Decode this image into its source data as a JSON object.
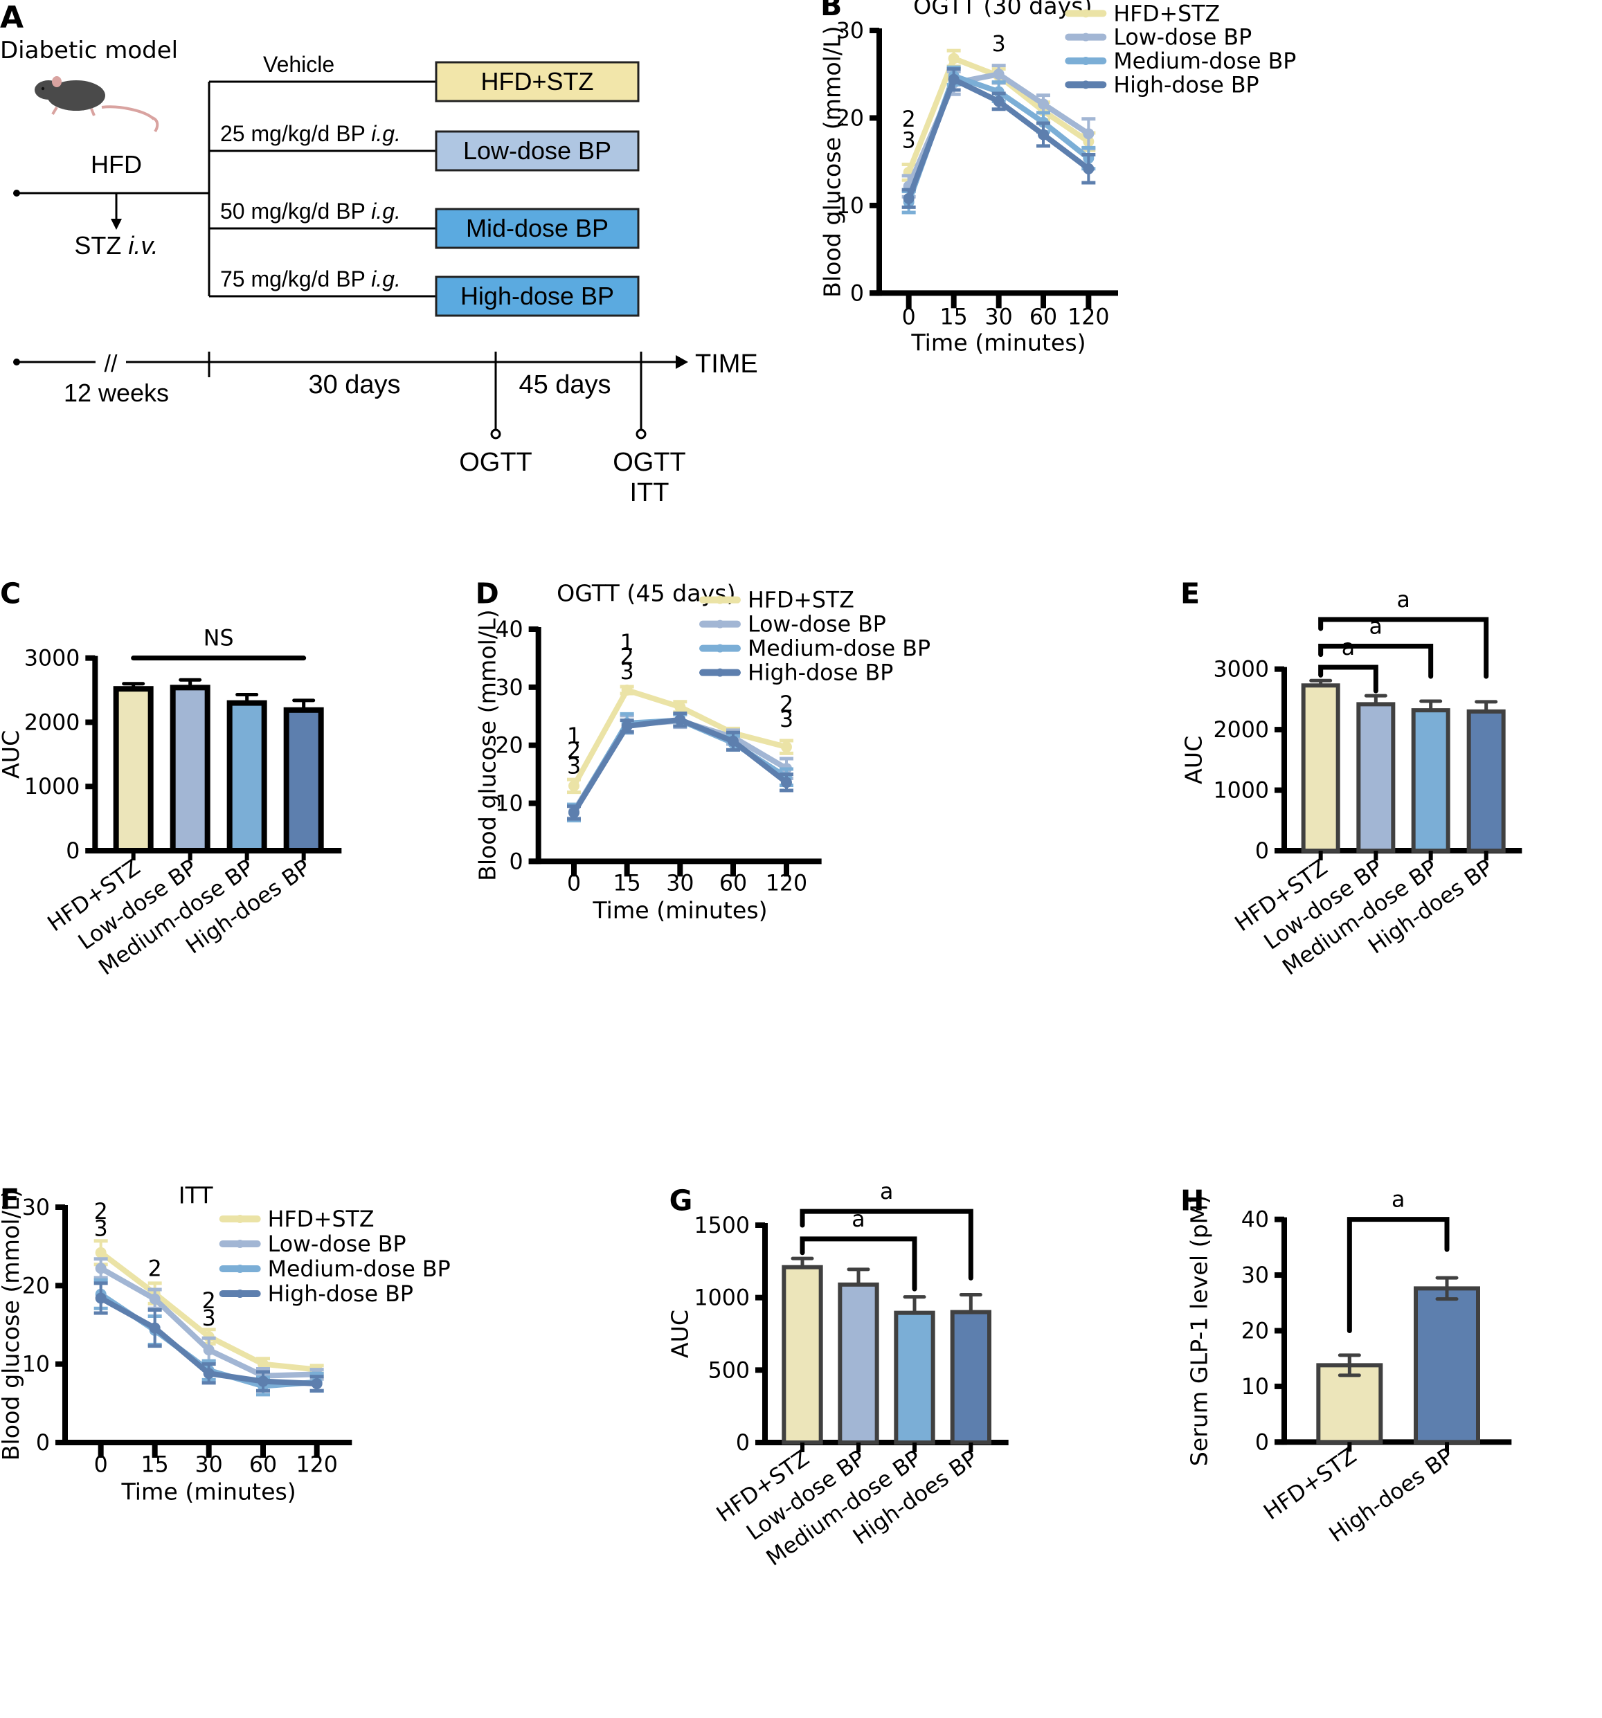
{
  "colors": {
    "hfd_stz": "#ECE5BA",
    "hfd_stz_line": "#EBE3A6",
    "low_dose": "#A2B6D4",
    "medium_dose": "#7BAED6",
    "high_dose": "#5D7FAE",
    "box_hfd": "#F2E6AA",
    "box_low": "#AFC6E2",
    "box_mid": "#5BAAE0",
    "box_high": "#5BAAE0",
    "axis": "#000000",
    "bar_outline_c": "#000000",
    "bar_outline": "#404040"
  },
  "panel_a": {
    "letter": "A",
    "title": "Diabetic model",
    "mouse_icon": "mouse-icon",
    "hfd_label": "HFD",
    "stz_label_main": "STZ ",
    "stz_label_italic": "i.v.",
    "branches": [
      {
        "dose_label": "Vehicle",
        "dose_italic": "",
        "group": "HFD+STZ",
        "color_key": "box_hfd"
      },
      {
        "dose_label": "25 mg/kg/d BP ",
        "dose_italic": "i.g.",
        "group": "Low-dose BP",
        "color_key": "box_low"
      },
      {
        "dose_label": "50 mg/kg/d BP ",
        "dose_italic": "i.g.",
        "group": "Mid-dose BP",
        "color_key": "box_mid"
      },
      {
        "dose_label": "75 mg/kg/d BP ",
        "dose_italic": "i.g.",
        "group": "High-dose BP",
        "color_key": "box_high"
      }
    ],
    "timeline": {
      "break_mark": "//",
      "segments": [
        "12 weeks",
        "30 days",
        "45 days"
      ],
      "axis_label": "TIME",
      "events": [
        [
          "OGTT"
        ],
        [
          "OGTT",
          "ITT"
        ]
      ]
    }
  },
  "chart_data": [
    {
      "id": "B",
      "letter": "B",
      "type": "line",
      "title": "OGTT (30 days)",
      "xlabel": "Time (minutes)",
      "ylabel": "Blood glucose (mmol/L)",
      "categories": [
        "0",
        "15",
        "30",
        "60",
        "120"
      ],
      "yticks": [
        0,
        10,
        20,
        30
      ],
      "ylim": [
        0,
        30
      ],
      "grid": false,
      "legend_position": "top-right",
      "series": [
        {
          "name": "HFD+STZ",
          "color_key": "hfd_stz_line",
          "values": [
            13.8,
            26.8,
            24.8,
            20.8,
            17.3
          ],
          "errors": [
            0.9,
            0.9,
            0.8,
            1.0,
            1.0
          ]
        },
        {
          "name": "Low-dose BP",
          "color_key": "low_dose",
          "values": [
            12.2,
            24.0,
            25.0,
            21.6,
            18.2
          ],
          "errors": [
            1.2,
            1.3,
            1.0,
            1.0,
            1.7
          ]
        },
        {
          "name": "Medium-dose BP",
          "color_key": "medium_dose",
          "values": [
            10.4,
            24.8,
            23.0,
            19.5,
            15.4
          ],
          "errors": [
            1.2,
            1.0,
            1.1,
            1.1,
            1.2
          ]
        },
        {
          "name": "High-dose BP",
          "color_key": "high_dose",
          "values": [
            10.8,
            24.4,
            21.9,
            18.1,
            14.2
          ],
          "errors": [
            1.0,
            1.2,
            0.9,
            1.3,
            1.6
          ]
        }
      ],
      "annotations": [
        {
          "x_index": 0,
          "y": 19.8,
          "text": "2"
        },
        {
          "x_index": 0,
          "y": 17.4,
          "text": "3"
        },
        {
          "x_index": 2,
          "y": 28.4,
          "text": "3"
        }
      ]
    },
    {
      "id": "C",
      "letter": "C",
      "type": "bar",
      "title": "",
      "xlabel": "",
      "ylabel": "AUC",
      "categories": [
        "HFD+STZ",
        "Low-dose BP",
        "Medium-dose BP",
        "High-does BP"
      ],
      "color_keys": [
        "hfd_stz",
        "low_dose",
        "medium_dose",
        "high_dose"
      ],
      "values": [
        2520,
        2540,
        2300,
        2190
      ],
      "errors": [
        80,
        120,
        130,
        150
      ],
      "yticks": [
        0,
        1000,
        2000,
        3000
      ],
      "ylim": [
        0,
        3000
      ],
      "grid": false,
      "outline_key": "bar_outline_c",
      "significance": [
        {
          "from": 0,
          "to": 3,
          "label": "NS",
          "style": "line",
          "level": 3000
        }
      ]
    },
    {
      "id": "D",
      "letter": "D",
      "type": "line",
      "title": "OGTT (45 days)",
      "xlabel": "Time (minutes)",
      "ylabel": "Blood glucose (mmol/L)",
      "categories": [
        "0",
        "15",
        "30",
        "60",
        "120"
      ],
      "yticks": [
        0,
        10,
        20,
        30,
        40
      ],
      "ylim": [
        0,
        40
      ],
      "grid": false,
      "legend_position": "top-right",
      "series": [
        {
          "name": "HFD+STZ",
          "color_key": "hfd_stz_line",
          "values": [
            13.0,
            29.5,
            26.6,
            22.1,
            19.7
          ],
          "errors": [
            1.1,
            0.6,
            0.9,
            0.8,
            1.1
          ]
        },
        {
          "name": "Low-dose BP",
          "color_key": "low_dose",
          "values": [
            8.6,
            23.6,
            24.2,
            21.4,
            16.0
          ],
          "errors": [
            1.2,
            1.5,
            1.1,
            1.2,
            1.7
          ]
        },
        {
          "name": "Medium-dose BP",
          "color_key": "medium_dose",
          "values": [
            8.4,
            23.8,
            24.3,
            20.4,
            14.5
          ],
          "errors": [
            1.4,
            1.6,
            1.0,
            1.2,
            1.4
          ]
        },
        {
          "name": "High-dose BP",
          "color_key": "high_dose",
          "values": [
            8.4,
            23.3,
            24.4,
            20.7,
            13.6
          ],
          "errors": [
            1.1,
            1.0,
            1.1,
            1.5,
            1.4
          ]
        }
      ],
      "annotations": [
        {
          "x_index": 0,
          "y": 21.5,
          "text": "1"
        },
        {
          "x_index": 0,
          "y": 19.0,
          "text": "2"
        },
        {
          "x_index": 0,
          "y": 16.3,
          "text": "3"
        },
        {
          "x_index": 1,
          "y": 37.6,
          "text": "1"
        },
        {
          "x_index": 1,
          "y": 35.2,
          "text": "2"
        },
        {
          "x_index": 1,
          "y": 32.6,
          "text": "3"
        },
        {
          "x_index": 4,
          "y": 27.0,
          "text": "2"
        },
        {
          "x_index": 4,
          "y": 24.4,
          "text": "3"
        }
      ]
    },
    {
      "id": "E",
      "letter": "E",
      "type": "bar",
      "title": "",
      "xlabel": "",
      "ylabel": "AUC",
      "categories": [
        "HFD+STZ",
        "Low-dose BP",
        "Medium-dose BP",
        "High-does BP"
      ],
      "color_keys": [
        "hfd_stz",
        "low_dose",
        "medium_dose",
        "high_dose"
      ],
      "values": [
        2730,
        2420,
        2320,
        2300
      ],
      "errors": [
        80,
        140,
        150,
        160
      ],
      "yticks": [
        0,
        1000,
        2000,
        3000
      ],
      "ylim": [
        0,
        3000
      ],
      "grid": false,
      "outline_key": "bar_outline",
      "significance": [
        {
          "from": 0,
          "to": 1,
          "label": "a",
          "style": "bracket",
          "level": 3030,
          "drop_from": 2900,
          "drop_to": 2640
        },
        {
          "from": 0,
          "to": 2,
          "label": "a",
          "style": "bracket",
          "level": 3380,
          "drop_from": 3240,
          "drop_to": 2880
        },
        {
          "from": 0,
          "to": 3,
          "label": "a",
          "style": "bracket",
          "level": 3820,
          "drop_from": 3670,
          "drop_to": 2880
        }
      ]
    },
    {
      "id": "F",
      "letter": "F",
      "type": "line",
      "title": "ITT",
      "xlabel": "Time (minutes)",
      "ylabel": "Blood glucose (mmol/L)",
      "categories": [
        "0",
        "15",
        "30",
        "60",
        "120"
      ],
      "yticks": [
        0,
        10,
        20,
        30
      ],
      "ylim": [
        0,
        30
      ],
      "grid": false,
      "legend_position": "top-right",
      "series": [
        {
          "name": "HFD+STZ",
          "color_key": "hfd_stz_line",
          "values": [
            24.2,
            19.0,
            13.5,
            10.0,
            9.3
          ],
          "errors": [
            1.5,
            1.3,
            0.9,
            0.7,
            0.5
          ]
        },
        {
          "name": "Low-dose BP",
          "color_key": "low_dose",
          "values": [
            22.2,
            18.3,
            11.8,
            8.5,
            8.7
          ],
          "errors": [
            1.2,
            1.2,
            1.5,
            0.9,
            0.6
          ]
        },
        {
          "name": "Medium-dose BP",
          "color_key": "medium_dose",
          "values": [
            18.9,
            14.3,
            9.2,
            7.2,
            7.7
          ],
          "errors": [
            1.8,
            1.8,
            1.2,
            1.1,
            1.1
          ]
        },
        {
          "name": "High-dose BP",
          "color_key": "high_dose",
          "values": [
            18.4,
            14.6,
            8.8,
            7.8,
            7.5
          ],
          "errors": [
            1.9,
            2.3,
            1.2,
            1.2,
            0.9
          ]
        }
      ],
      "annotations": [
        {
          "x_index": 0,
          "y": 29.4,
          "text": "2"
        },
        {
          "x_index": 0,
          "y": 27.2,
          "text": "3"
        },
        {
          "x_index": 1,
          "y": 22.1,
          "text": "2"
        },
        {
          "x_index": 2,
          "y": 18.0,
          "text": "2"
        },
        {
          "x_index": 2,
          "y": 15.8,
          "text": "3"
        }
      ]
    },
    {
      "id": "G",
      "letter": "G",
      "type": "bar",
      "title": "",
      "xlabel": "",
      "ylabel": "AUC",
      "categories": [
        "HFD+STZ",
        "Low-dose BP",
        "Medium-dose BP",
        "High-does BP"
      ],
      "color_keys": [
        "hfd_stz",
        "low_dose",
        "medium_dose",
        "high_dose"
      ],
      "values": [
        1210,
        1090,
        895,
        900
      ],
      "errors": [
        60,
        105,
        110,
        120
      ],
      "yticks": [
        0,
        500,
        1000,
        1500
      ],
      "ylim": [
        0,
        1500
      ],
      "grid": false,
      "outline_key": "bar_outline",
      "significance": [
        {
          "from": 0,
          "to": 2,
          "label": "a",
          "style": "bracket",
          "level": 1405,
          "drop_from": 1310,
          "drop_to": 1060
        },
        {
          "from": 0,
          "to": 3,
          "label": "a",
          "style": "bracket",
          "level": 1595,
          "drop_from": 1500,
          "drop_to": 1135
        }
      ]
    },
    {
      "id": "H",
      "letter": "H",
      "type": "bar",
      "title": "",
      "xlabel": "",
      "ylabel": "Serum GLP-1 level (pM)",
      "categories": [
        "HFD+STZ",
        "High-does BP"
      ],
      "color_keys": [
        "hfd_stz",
        "high_dose"
      ],
      "values": [
        13.8,
        27.6
      ],
      "errors": [
        1.8,
        1.9
      ],
      "yticks": [
        0,
        10,
        20,
        30,
        40
      ],
      "ylim": [
        0,
        40
      ],
      "grid": false,
      "outline_key": "bar_outline",
      "two_sided_error": true,
      "significance": [
        {
          "from": 0,
          "to": 1,
          "label": "a",
          "style": "bracket",
          "level": 40,
          "drop_from": 20,
          "drop_to": 34.6
        }
      ]
    }
  ]
}
